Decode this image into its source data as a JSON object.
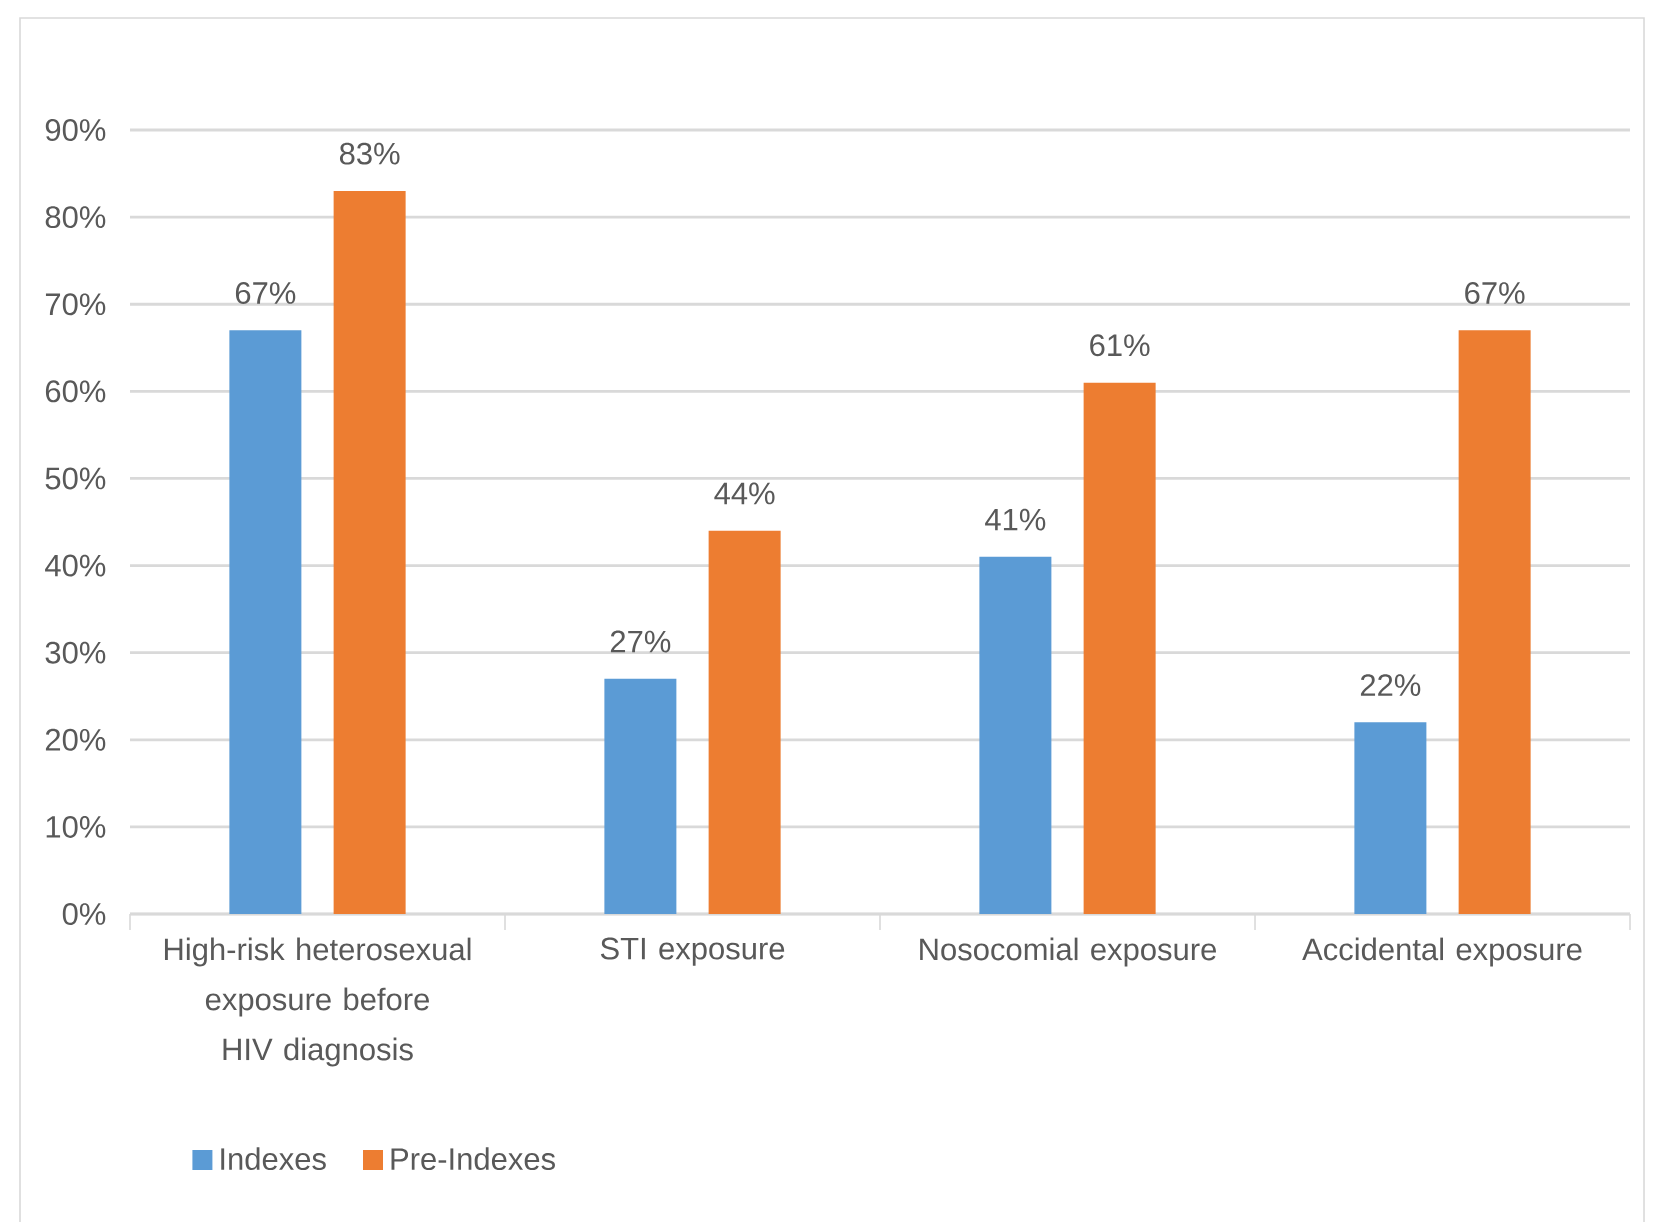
{
  "chart_data": {
    "type": "bar",
    "categories": [
      "High-risk heterosexual exposure before HIV diagnosis",
      "STI exposure",
      "Nosocomial exposure",
      "Accidental exposure"
    ],
    "series": [
      {
        "name": "Indexes",
        "color": "#5b9bd5",
        "values": [
          67,
          27,
          41,
          22
        ],
        "value_labels": [
          "67%",
          "27%",
          "41%",
          "22%"
        ]
      },
      {
        "name": "Pre-Indexes",
        "color": "#ed7d31",
        "values": [
          83,
          44,
          61,
          67
        ],
        "value_labels": [
          "83%",
          "44%",
          "61%",
          "67%"
        ]
      }
    ],
    "ylim": [
      0,
      90
    ],
    "yticks": [
      {
        "value": 0,
        "label": "0%"
      },
      {
        "value": 10,
        "label": "10%"
      },
      {
        "value": 20,
        "label": "20%"
      },
      {
        "value": 30,
        "label": "30%"
      },
      {
        "value": 40,
        "label": "40%"
      },
      {
        "value": 50,
        "label": "50%"
      },
      {
        "value": 60,
        "label": "60%"
      },
      {
        "value": 70,
        "label": "70%"
      },
      {
        "value": 80,
        "label": "80%"
      },
      {
        "value": 90,
        "label": "90%"
      }
    ],
    "grid": "y",
    "legend": "bottom left"
  }
}
